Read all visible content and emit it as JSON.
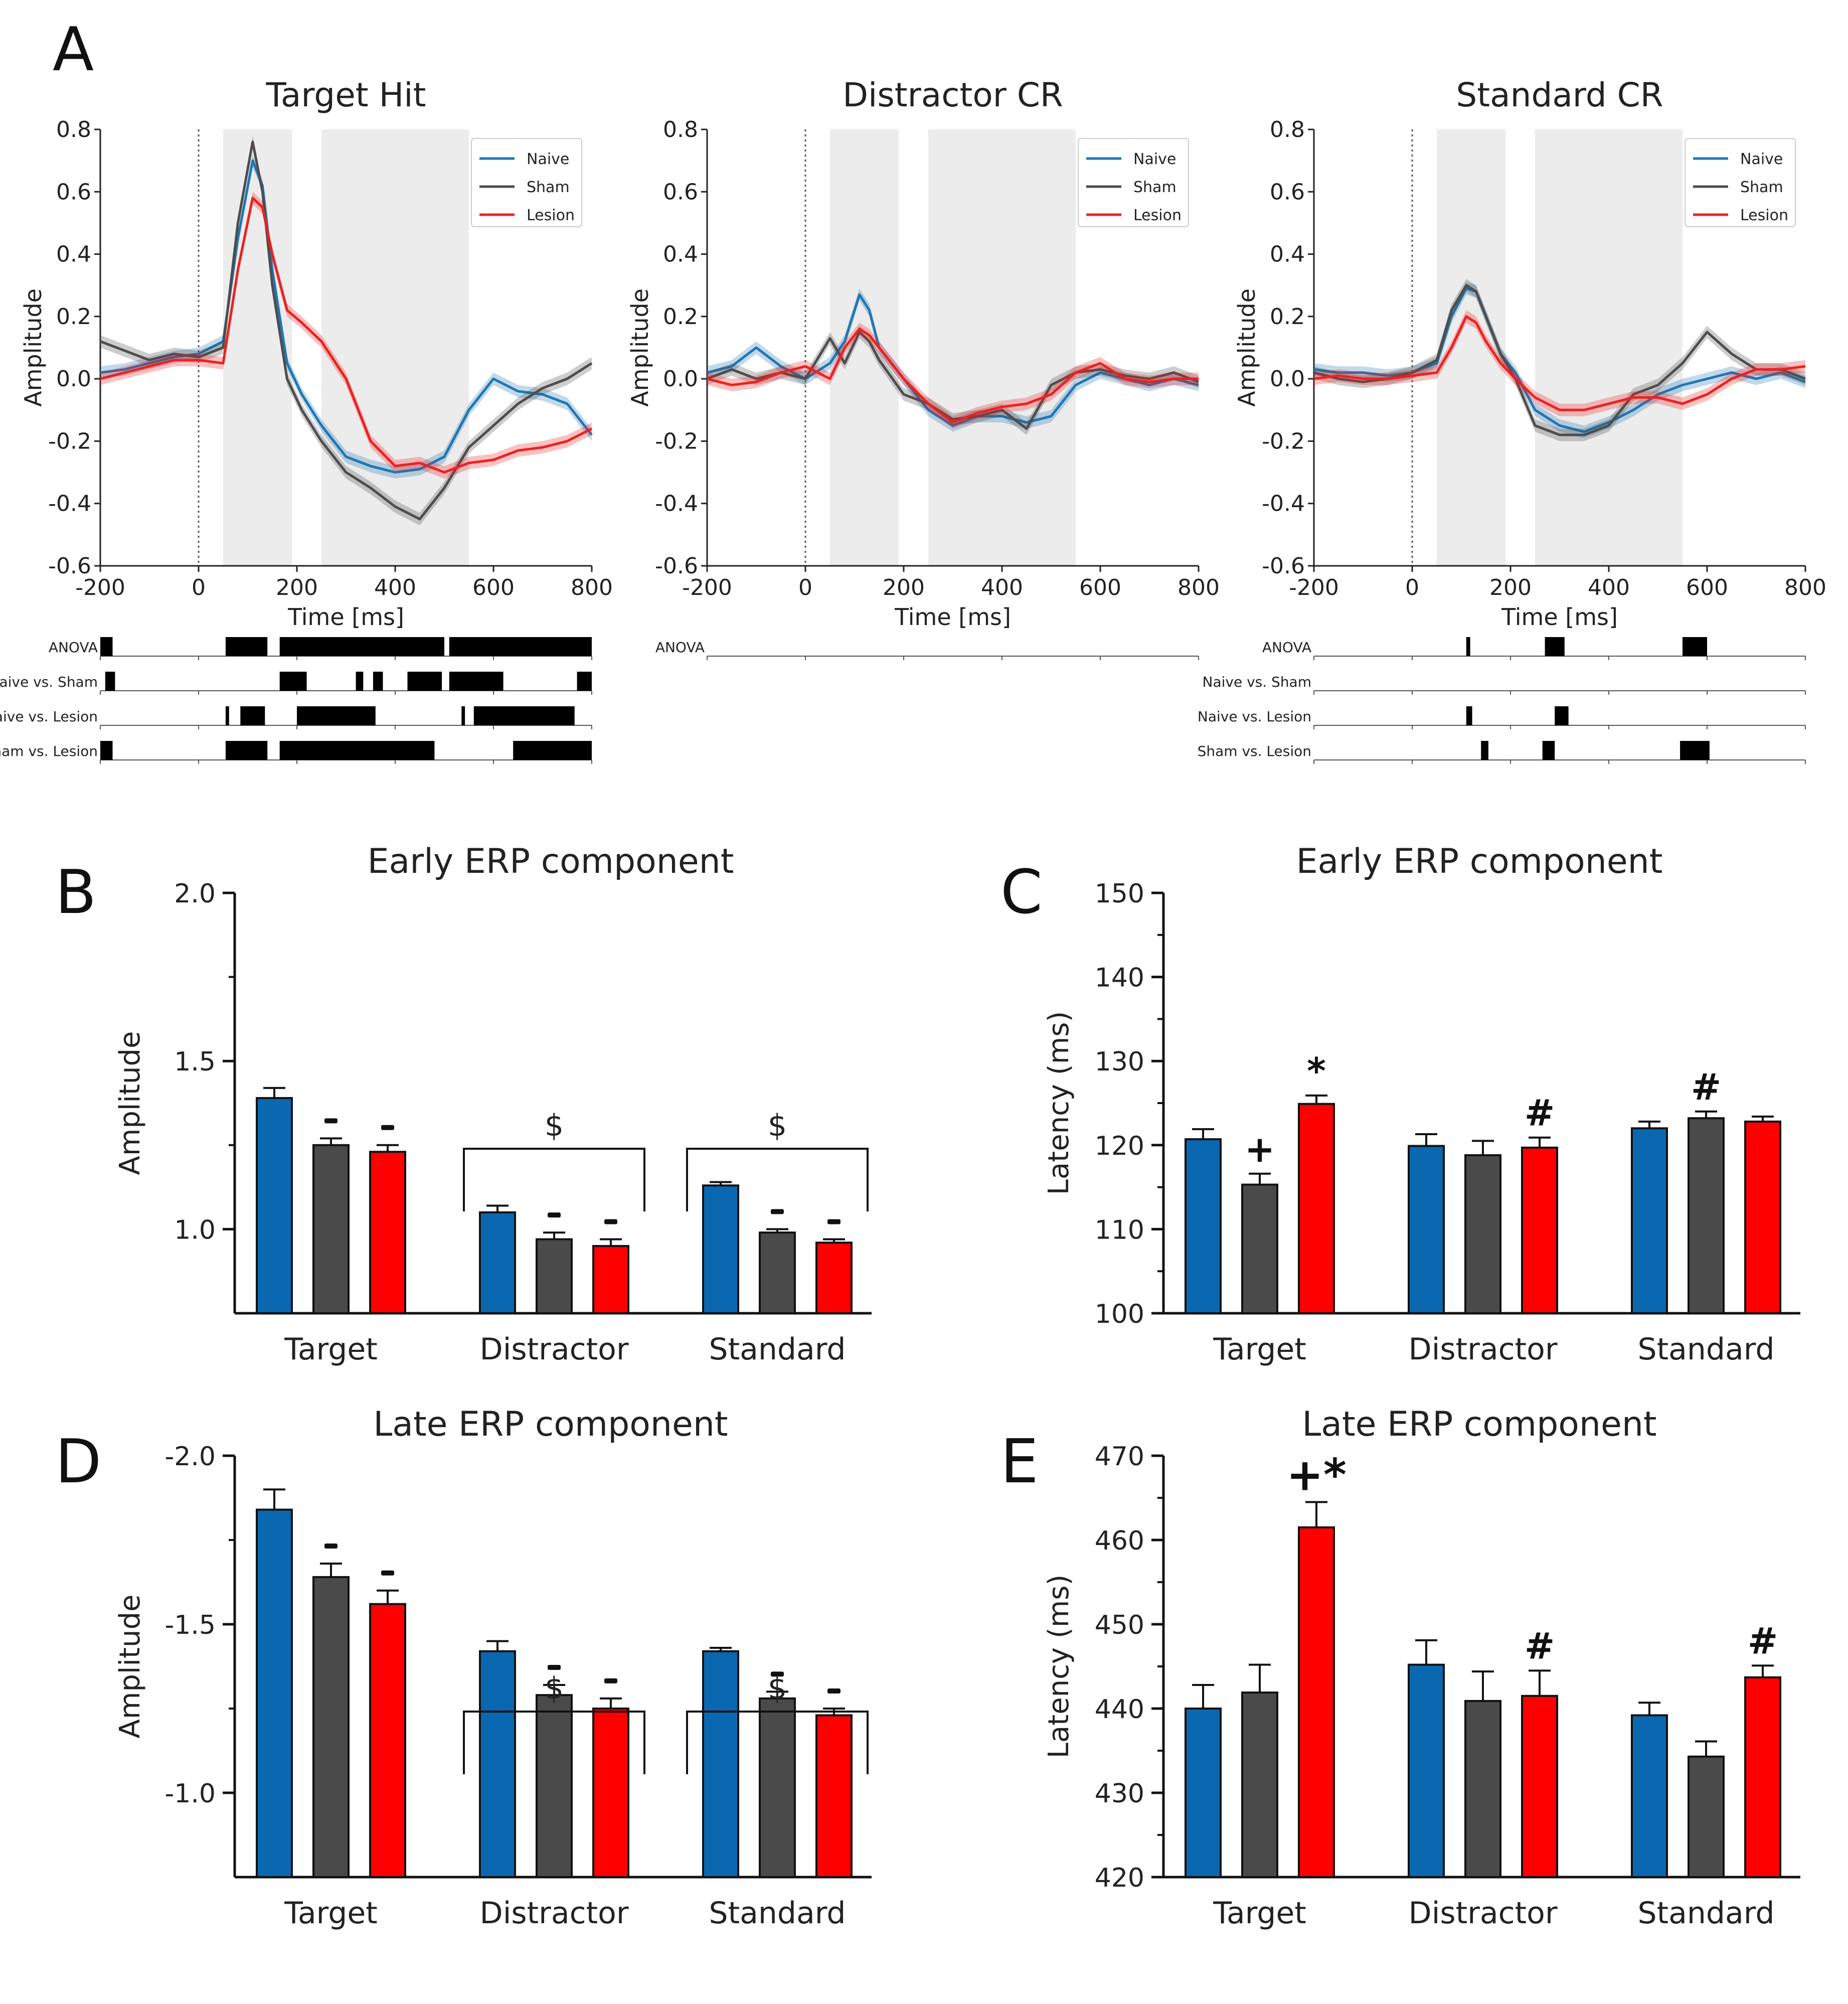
{
  "panel_letters": {
    "A": "A",
    "B": "B",
    "C": "C",
    "D": "D",
    "E": "E"
  },
  "colors": {
    "naive": "#1f77b4",
    "sham": "#4d4d4d",
    "lesion": "#ee2020",
    "bar_naive": "#0a68b0",
    "bar_sham": "#4a4a4a",
    "bar_lesion": "#ff0000",
    "shade": "#ececec"
  },
  "chart_data": [
    {
      "id": "erp_target_hit",
      "type": "line",
      "title": "Target Hit",
      "xlabel": "Time [ms]",
      "ylabel": "Amplitude",
      "xlim": [
        -200,
        800
      ],
      "ylim": [
        -0.6,
        0.8
      ],
      "xticks": [
        -200,
        0,
        200,
        400,
        600,
        800
      ],
      "yticks": [
        -0.6,
        -0.4,
        -0.2,
        0.0,
        0.2,
        0.4,
        0.6,
        0.8
      ],
      "ytick_labels": [
        "-0.6",
        "-0.4",
        "-0.2",
        "0.0",
        "0.2",
        "0.4",
        "0.6",
        "0.8"
      ],
      "shaded_windows": [
        [
          50,
          190
        ],
        [
          250,
          550
        ]
      ],
      "legend": [
        "Naive",
        "Sham",
        "Lesion"
      ],
      "series": [
        {
          "name": "Naive",
          "x": [
            -200,
            -150,
            -100,
            -50,
            0,
            50,
            80,
            110,
            130,
            150,
            180,
            210,
            250,
            300,
            350,
            400,
            450,
            500,
            550,
            600,
            650,
            700,
            750,
            800
          ],
          "y": [
            0.02,
            0.03,
            0.05,
            0.07,
            0.08,
            0.12,
            0.45,
            0.7,
            0.62,
            0.35,
            0.05,
            -0.05,
            -0.15,
            -0.25,
            -0.28,
            -0.3,
            -0.29,
            -0.25,
            -0.1,
            0.0,
            -0.04,
            -0.05,
            -0.08,
            -0.18
          ]
        },
        {
          "name": "Sham",
          "x": [
            -200,
            -150,
            -100,
            -50,
            0,
            50,
            80,
            110,
            130,
            150,
            180,
            210,
            250,
            300,
            350,
            400,
            450,
            500,
            550,
            600,
            650,
            700,
            750,
            800
          ],
          "y": [
            0.12,
            0.09,
            0.06,
            0.08,
            0.07,
            0.1,
            0.5,
            0.76,
            0.6,
            0.3,
            0.0,
            -0.1,
            -0.2,
            -0.3,
            -0.35,
            -0.41,
            -0.45,
            -0.35,
            -0.22,
            -0.15,
            -0.08,
            -0.03,
            0.0,
            0.05
          ]
        },
        {
          "name": "Lesion",
          "x": [
            -200,
            -150,
            -100,
            -50,
            0,
            50,
            80,
            110,
            130,
            150,
            180,
            210,
            250,
            300,
            350,
            400,
            450,
            500,
            550,
            600,
            650,
            700,
            750,
            800
          ],
          "y": [
            0.0,
            0.02,
            0.04,
            0.06,
            0.06,
            0.05,
            0.35,
            0.58,
            0.55,
            0.4,
            0.22,
            0.18,
            0.12,
            0.0,
            -0.2,
            -0.28,
            -0.27,
            -0.3,
            -0.27,
            -0.26,
            -0.23,
            -0.22,
            -0.2,
            -0.16
          ]
        }
      ],
      "significance": {
        "rows": [
          "ANOVA",
          "Naive vs. Sham",
          "Naive vs. Lesion",
          "Sham vs. Lesion"
        ],
        "bars": [
          [
            [
              -200,
              -175
            ],
            [
              55,
              140
            ],
            [
              165,
              500
            ],
            [
              510,
              800
            ]
          ],
          [
            [
              -190,
              -170
            ],
            [
              165,
              220
            ],
            [
              320,
              335
            ],
            [
              355,
              375
            ],
            [
              425,
              495
            ],
            [
              510,
              620
            ],
            [
              770,
              800
            ]
          ],
          [
            [
              55,
              62
            ],
            [
              85,
              135
            ],
            [
              200,
              360
            ],
            [
              535,
              542
            ],
            [
              560,
              765
            ]
          ],
          [
            [
              -200,
              -175
            ],
            [
              55,
              140
            ],
            [
              165,
              480
            ],
            [
              640,
              800
            ]
          ]
        ]
      }
    },
    {
      "id": "erp_distractor_cr",
      "type": "line",
      "title": "Distractor CR",
      "xlabel": "Time [ms]",
      "ylabel": "Amplitude",
      "xlim": [
        -200,
        800
      ],
      "ylim": [
        -0.6,
        0.8
      ],
      "xticks": [
        -200,
        0,
        200,
        400,
        600,
        800
      ],
      "yticks": [
        -0.6,
        -0.4,
        -0.2,
        0.0,
        0.2,
        0.4,
        0.6,
        0.8
      ],
      "ytick_labels": [
        "-0.6",
        "-0.4",
        "-0.2",
        "0.0",
        "0.2",
        "0.4",
        "0.6",
        "0.8"
      ],
      "shaded_windows": [
        [
          50,
          190
        ],
        [
          250,
          550
        ]
      ],
      "legend": [
        "Naive",
        "Sham",
        "Lesion"
      ],
      "series": [
        {
          "name": "Naive",
          "x": [
            -200,
            -150,
            -100,
            -50,
            0,
            50,
            80,
            110,
            130,
            150,
            200,
            250,
            300,
            350,
            400,
            450,
            500,
            550,
            600,
            650,
            700,
            750,
            800
          ],
          "y": [
            0.02,
            0.04,
            0.1,
            0.04,
            0.0,
            0.05,
            0.12,
            0.27,
            0.22,
            0.1,
            0.0,
            -0.1,
            -0.15,
            -0.12,
            -0.12,
            -0.14,
            -0.12,
            -0.02,
            0.02,
            0.0,
            -0.02,
            0.0,
            -0.02
          ]
        },
        {
          "name": "Sham",
          "x": [
            -200,
            -150,
            -100,
            -50,
            0,
            50,
            80,
            110,
            130,
            150,
            200,
            250,
            300,
            350,
            400,
            450,
            500,
            550,
            600,
            650,
            700,
            750,
            800
          ],
          "y": [
            0.0,
            0.03,
            0.0,
            0.02,
            0.0,
            0.13,
            0.05,
            0.15,
            0.12,
            0.06,
            -0.05,
            -0.08,
            -0.13,
            -0.12,
            -0.1,
            -0.16,
            -0.02,
            0.02,
            0.03,
            0.01,
            0.0,
            0.02,
            -0.01
          ]
        },
        {
          "name": "Lesion",
          "x": [
            -200,
            -150,
            -100,
            -50,
            0,
            50,
            80,
            110,
            130,
            150,
            200,
            250,
            300,
            350,
            400,
            450,
            500,
            550,
            600,
            650,
            700,
            750,
            800
          ],
          "y": [
            0.0,
            -0.02,
            -0.01,
            0.02,
            0.04,
            0.0,
            0.1,
            0.16,
            0.14,
            0.1,
            0.0,
            -0.08,
            -0.14,
            -0.11,
            -0.09,
            -0.08,
            -0.05,
            0.02,
            0.05,
            0.0,
            -0.01,
            0.0,
            0.0
          ]
        }
      ],
      "significance": {
        "rows": [
          "ANOVA"
        ],
        "bars": [
          []
        ]
      }
    },
    {
      "id": "erp_standard_cr",
      "type": "line",
      "title": "Standard CR",
      "xlabel": "Time [ms]",
      "ylabel": "Amplitude",
      "xlim": [
        -200,
        800
      ],
      "ylim": [
        -0.6,
        0.8
      ],
      "xticks": [
        -200,
        0,
        200,
        400,
        600,
        800
      ],
      "yticks": [
        -0.6,
        -0.4,
        -0.2,
        0.0,
        0.2,
        0.4,
        0.6,
        0.8
      ],
      "ytick_labels": [
        "-0.6",
        "-0.4",
        "-0.2",
        "0.0",
        "0.2",
        "0.4",
        "0.6",
        "0.8"
      ],
      "shaded_windows": [
        [
          50,
          190
        ],
        [
          250,
          550
        ]
      ],
      "legend": [
        "Naive",
        "Sham",
        "Lesion"
      ],
      "series": [
        {
          "name": "Naive",
          "x": [
            -200,
            -150,
            -100,
            -50,
            0,
            50,
            80,
            110,
            130,
            150,
            180,
            210,
            250,
            300,
            350,
            400,
            450,
            500,
            550,
            600,
            650,
            700,
            750,
            800
          ],
          "y": [
            0.03,
            0.02,
            0.02,
            0.01,
            0.02,
            0.05,
            0.2,
            0.29,
            0.28,
            0.2,
            0.08,
            0.02,
            -0.1,
            -0.15,
            -0.17,
            -0.14,
            -0.1,
            -0.05,
            -0.02,
            0.0,
            0.02,
            0.0,
            0.02,
            -0.01
          ]
        },
        {
          "name": "Sham",
          "x": [
            -200,
            -150,
            -100,
            -50,
            0,
            50,
            80,
            110,
            130,
            150,
            180,
            210,
            250,
            300,
            350,
            400,
            450,
            500,
            550,
            600,
            650,
            700,
            750,
            800
          ],
          "y": [
            0.02,
            0.0,
            -0.01,
            0.0,
            0.02,
            0.06,
            0.22,
            0.3,
            0.28,
            0.2,
            0.08,
            0.0,
            -0.15,
            -0.18,
            -0.18,
            -0.15,
            -0.05,
            -0.02,
            0.05,
            0.15,
            0.08,
            0.03,
            0.03,
            0.0
          ]
        },
        {
          "name": "Lesion",
          "x": [
            -200,
            -150,
            -100,
            -50,
            0,
            50,
            80,
            110,
            130,
            150,
            180,
            210,
            250,
            300,
            350,
            400,
            450,
            500,
            550,
            600,
            650,
            700,
            750,
            800
          ],
          "y": [
            0.0,
            0.01,
            0.0,
            0.0,
            0.01,
            0.02,
            0.1,
            0.2,
            0.18,
            0.12,
            0.05,
            0.0,
            -0.06,
            -0.1,
            -0.1,
            -0.08,
            -0.06,
            -0.06,
            -0.08,
            -0.05,
            0.0,
            0.03,
            0.03,
            0.04
          ]
        }
      ],
      "significance": {
        "rows": [
          "ANOVA",
          "Naive vs. Sham",
          "Naive vs. Lesion",
          "Sham vs. Lesion"
        ],
        "bars": [
          [
            [
              110,
              118
            ],
            [
              270,
              310
            ],
            [
              550,
              600
            ]
          ],
          [],
          [
            [
              110,
              122
            ],
            [
              290,
              318
            ]
          ],
          [
            [
              140,
              155
            ],
            [
              265,
              290
            ],
            [
              545,
              605
            ]
          ]
        ]
      }
    },
    {
      "id": "bar_early_amplitude",
      "type": "bar",
      "panel": "B",
      "title": "Early ERP component",
      "ylabel": "Amplitude",
      "ylim": [
        0.75,
        2.0
      ],
      "yticks": [
        1.0,
        1.5,
        2.0
      ],
      "ytick_labels": [
        "1.0",
        "1.5",
        "2.0"
      ],
      "categories": [
        "Target",
        "Distractor",
        "Standard"
      ],
      "series": [
        {
          "name": "Naive",
          "values": [
            1.39,
            1.05,
            1.13
          ],
          "errors": [
            0.03,
            0.02,
            0.01
          ]
        },
        {
          "name": "Sham",
          "values": [
            1.25,
            0.97,
            0.99
          ],
          "errors": [
            0.02,
            0.02,
            0.01
          ]
        },
        {
          "name": "Lesion",
          "values": [
            1.23,
            0.95,
            0.96
          ],
          "errors": [
            0.02,
            0.02,
            0.01
          ]
        }
      ],
      "marks": [
        [
          "",
          "-",
          "-"
        ],
        [
          "",
          "-",
          "-"
        ],
        [
          "",
          "-",
          "-"
        ]
      ],
      "brackets": [
        {
          "category": 1,
          "label": "$"
        },
        {
          "category": 2,
          "label": "$"
        }
      ]
    },
    {
      "id": "bar_early_latency",
      "type": "bar",
      "panel": "C",
      "title": "Early ERP component",
      "ylabel": "Latency (ms)",
      "ylim": [
        100,
        150
      ],
      "yticks": [
        100,
        110,
        120,
        130,
        140,
        150
      ],
      "ytick_labels": [
        "100",
        "110",
        "120",
        "130",
        "140",
        "150"
      ],
      "categories": [
        "Target",
        "Distractor",
        "Standard"
      ],
      "series": [
        {
          "name": "Naive",
          "values": [
            120.7,
            119.9,
            122.0
          ],
          "errors": [
            1.2,
            1.4,
            0.8
          ]
        },
        {
          "name": "Sham",
          "values": [
            115.3,
            118.8,
            123.2
          ],
          "errors": [
            1.3,
            1.7,
            0.8
          ]
        },
        {
          "name": "Lesion",
          "values": [
            124.9,
            119.7,
            122.8
          ],
          "errors": [
            1.0,
            1.2,
            0.6
          ]
        }
      ],
      "marks": [
        [
          "",
          "+",
          "*"
        ],
        [
          "",
          "",
          "#"
        ],
        [
          "",
          "#",
          ""
        ]
      ],
      "brackets": []
    },
    {
      "id": "bar_late_amplitude",
      "type": "bar",
      "panel": "D",
      "title": "Late ERP component",
      "ylabel": "Amplitude",
      "ylim": [
        -0.75,
        -2.0
      ],
      "yticks": [
        -1.0,
        -1.5,
        -2.0
      ],
      "ytick_labels": [
        "-1.0",
        "-1.5",
        "-2.0"
      ],
      "categories": [
        "Target",
        "Distractor",
        "Standard"
      ],
      "series": [
        {
          "name": "Naive",
          "values": [
            -1.84,
            -1.42,
            -1.42
          ],
          "errors": [
            0.06,
            0.03,
            0.01
          ]
        },
        {
          "name": "Sham",
          "values": [
            -1.64,
            -1.29,
            -1.28
          ],
          "errors": [
            0.04,
            0.03,
            0.02
          ]
        },
        {
          "name": "Lesion",
          "values": [
            -1.56,
            -1.25,
            -1.23
          ],
          "errors": [
            0.04,
            0.03,
            0.02
          ]
        }
      ],
      "marks": [
        [
          "",
          "-",
          "-"
        ],
        [
          "",
          "-",
          "-"
        ],
        [
          "",
          "-",
          "-"
        ]
      ],
      "brackets": [
        {
          "category": 1,
          "label": "$"
        },
        {
          "category": 2,
          "label": "$"
        }
      ]
    },
    {
      "id": "bar_late_latency",
      "type": "bar",
      "panel": "E",
      "title": "Late ERP component",
      "ylabel": "Latency (ms)",
      "ylim": [
        420,
        470
      ],
      "yticks": [
        420,
        430,
        440,
        450,
        460,
        470
      ],
      "ytick_labels": [
        "420",
        "430",
        "440",
        "450",
        "460",
        "470"
      ],
      "categories": [
        "Target",
        "Distractor",
        "Standard"
      ],
      "series": [
        {
          "name": "Naive",
          "values": [
            440.0,
            445.2,
            439.2
          ],
          "errors": [
            2.8,
            2.9,
            1.5
          ]
        },
        {
          "name": "Sham",
          "values": [
            441.9,
            440.9,
            434.3
          ],
          "errors": [
            3.3,
            3.5,
            1.8
          ]
        },
        {
          "name": "Lesion",
          "values": [
            461.5,
            441.5,
            443.7
          ],
          "errors": [
            3.0,
            3.0,
            1.4
          ]
        }
      ],
      "marks": [
        [
          "",
          "",
          "+*"
        ],
        [
          "",
          "",
          "#"
        ],
        [
          "",
          "",
          "#"
        ]
      ],
      "brackets": []
    }
  ]
}
